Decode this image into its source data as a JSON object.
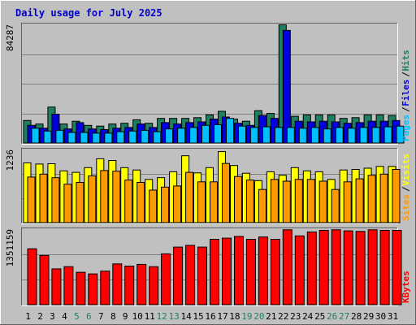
{
  "title": "Daily usage for July 2025",
  "colors": {
    "background": "#c0c0c0",
    "plot": "#c0c0c0",
    "title": "#0000cc",
    "hits": "#1e8060",
    "files": "#0000e0",
    "pages": "#00c0ff",
    "visits": "#ffff00",
    "sites": "#ff9900",
    "kbytes": "#ff0000",
    "weekend_label": "#208060"
  },
  "chart_data": [
    {
      "type": "bar",
      "name": "hits-files-pages",
      "ymax_label": "84287",
      "ylim": [
        0,
        84287
      ],
      "legend": [
        "Pages",
        "Files",
        "Hits"
      ],
      "x": [
        1,
        2,
        3,
        4,
        5,
        6,
        7,
        8,
        9,
        10,
        11,
        12,
        13,
        14,
        15,
        16,
        17,
        18,
        19,
        20,
        21,
        22,
        23,
        24,
        25,
        26,
        27,
        28,
        29,
        30,
        31
      ],
      "series": [
        {
          "name": "Hits",
          "values": [
            16000,
            13500,
            25500,
            13500,
            15500,
            12500,
            12000,
            13500,
            14000,
            16500,
            14000,
            17500,
            17500,
            17500,
            18000,
            20000,
            22500,
            17000,
            15500,
            23000,
            21000,
            84000,
            19000,
            20000,
            20000,
            20000,
            17500,
            18000,
            20000,
            20000,
            19500
          ]
        },
        {
          "name": "Files",
          "values": [
            12500,
            10500,
            20500,
            10000,
            14500,
            10000,
            9500,
            10500,
            11000,
            13500,
            11000,
            14500,
            13500,
            14500,
            15000,
            17000,
            18500,
            14000,
            12500,
            19500,
            17500,
            80000,
            15500,
            15000,
            15500,
            15000,
            14000,
            14500,
            15500,
            15500,
            16000
          ]
        },
        {
          "name": "Pages",
          "values": [
            10500,
            8500,
            9000,
            7500,
            7500,
            7000,
            7000,
            8000,
            8500,
            9000,
            8000,
            10000,
            10500,
            11000,
            12500,
            13000,
            17500,
            12000,
            11000,
            11500,
            11000,
            11000,
            10500,
            11000,
            10000,
            11000,
            10500,
            11000,
            11000,
            11500,
            12000
          ]
        }
      ]
    },
    {
      "type": "bar",
      "name": "visits-sites",
      "ymax_label": "1236",
      "ylim": [
        0,
        1236
      ],
      "legend": [
        "Sites",
        "Visits"
      ],
      "x": [
        1,
        2,
        3,
        4,
        5,
        6,
        7,
        8,
        9,
        10,
        11,
        12,
        13,
        14,
        15,
        16,
        17,
        18,
        19,
        20,
        21,
        22,
        23,
        24,
        25,
        26,
        27,
        28,
        29,
        30,
        31
      ],
      "series": [
        {
          "name": "Visits",
          "values": [
            1010,
            990,
            995,
            875,
            850,
            930,
            1080,
            1050,
            930,
            890,
            730,
            760,
            860,
            1130,
            840,
            930,
            1200,
            965,
            835,
            710,
            860,
            800,
            930,
            875,
            860,
            730,
            890,
            900,
            920,
            950,
            950
          ]
        },
        {
          "name": "Sites",
          "values": [
            770,
            820,
            760,
            650,
            680,
            790,
            880,
            870,
            720,
            680,
            550,
            600,
            620,
            850,
            690,
            690,
            1000,
            780,
            720,
            560,
            730,
            700,
            730,
            730,
            700,
            560,
            690,
            740,
            800,
            820,
            900
          ]
        }
      ]
    },
    {
      "type": "bar",
      "name": "kbytes",
      "ymax_label": "1351159",
      "ylim": [
        0,
        1351159
      ],
      "legend": [
        "KBytes"
      ],
      "x": [
        1,
        2,
        3,
        4,
        5,
        6,
        7,
        8,
        9,
        10,
        11,
        12,
        13,
        14,
        15,
        16,
        17,
        18,
        19,
        20,
        21,
        22,
        23,
        24,
        25,
        26,
        27,
        28,
        29,
        30,
        31
      ],
      "series": [
        {
          "name": "KBytes",
          "values": [
            1000000,
            880000,
            640000,
            680000,
            580000,
            550000,
            600000,
            730000,
            690000,
            720000,
            680000,
            910000,
            1030000,
            1060000,
            1030000,
            1170000,
            1190000,
            1220000,
            1170000,
            1210000,
            1170000,
            1340000,
            1230000,
            1300000,
            1330000,
            1340000,
            1320000,
            1310000,
            1340000,
            1330000,
            1330000
          ]
        }
      ]
    }
  ],
  "x_labels": [
    "1",
    "2",
    "3",
    "4",
    "5",
    "6",
    "7",
    "8",
    "9",
    "10",
    "11",
    "12",
    "13",
    "14",
    "15",
    "16",
    "17",
    "18",
    "19",
    "20",
    "21",
    "22",
    "23",
    "24",
    "25",
    "26",
    "27",
    "28",
    "29",
    "30",
    "31"
  ],
  "weekend_days": [
    5,
    6,
    12,
    13,
    19,
    20,
    26,
    27
  ]
}
